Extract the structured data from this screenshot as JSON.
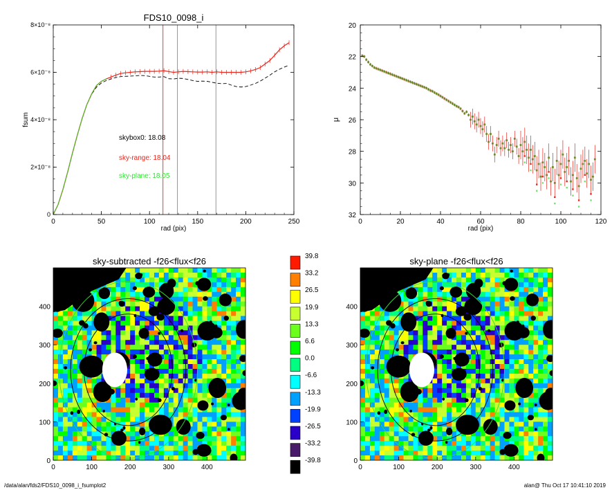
{
  "footer": {
    "path": "/data/alan/fds2/FDS10_0098_i_fsumplot2",
    "user_time": "alan@  Thu Oct 17 10:41:10 2019"
  },
  "colors": {
    "fsum_red": "#e8261c",
    "fsum_green": "#55b52a",
    "dashed": "#000000",
    "sky_range": "#e8261c",
    "sky_plane": "#2ee62e",
    "vline_red": "#e8261c",
    "vline_gray": "#8a8a8a"
  },
  "chart_data": [
    {
      "type": "line",
      "title": "FDS10_0098_i",
      "xlabel": "rad (pix)",
      "ylabel": "fsum",
      "xlim": [
        0,
        250
      ],
      "ylim": [
        0,
        8e-08
      ],
      "x_ticks": [
        "0",
        "50",
        "100",
        "150",
        "200",
        "250"
      ],
      "y_ticks": [
        "0",
        "2×10⁻⁸",
        "4×10⁻⁸",
        "6×10⁻⁸",
        "8×10⁻⁸"
      ],
      "vertical_lines": [
        {
          "x": 114,
          "color": "red"
        },
        {
          "x": 129,
          "color": "gray"
        },
        {
          "x": 169,
          "color": "gray"
        }
      ],
      "annotations": [
        {
          "text": "skybox0: 18.08",
          "color": "black"
        },
        {
          "text": "sky-range: 18.04",
          "color": "red"
        },
        {
          "text": "sky-plane: 18.05",
          "color": "green"
        }
      ],
      "x": [
        0,
        5,
        10,
        15,
        20,
        25,
        30,
        35,
        40,
        45,
        50,
        55,
        60,
        65,
        70,
        75,
        80,
        85,
        90,
        95,
        100,
        105,
        110,
        115,
        120,
        125,
        130,
        135,
        140,
        145,
        150,
        155,
        160,
        165,
        170,
        175,
        180,
        185,
        190,
        195,
        200,
        205,
        210,
        215,
        220,
        225,
        230,
        235,
        240,
        245
      ],
      "series": [
        {
          "values": [
            0,
            4.2e-09,
            1.05e-08,
            1.8e-08,
            2.6e-08,
            3.35e-08,
            4.05e-08,
            4.65e-08,
            5.1e-08,
            5.45e-08,
            5.62e-08,
            5.72e-08,
            5.8e-08,
            5.88e-08,
            5.95e-08,
            5.98e-08,
            6e-08,
            6.02e-08,
            6.03e-08,
            6.04e-08,
            6.04e-08,
            6.04e-08,
            6.05e-08,
            6.07e-08,
            6.03e-08,
            6e-08,
            6.02e-08,
            6.04e-08,
            6.03e-08,
            6.02e-08,
            6.01e-08,
            6.01e-08,
            6.02e-08,
            6e-08,
            6.02e-08,
            6e-08,
            6e-08,
            6e-08,
            6e-08,
            6e-08,
            6.02e-08,
            6.06e-08,
            6.12e-08,
            6.2e-08,
            6.35e-08,
            6.5e-08,
            6.72e-08,
            6.95e-08,
            7.12e-08,
            7.25e-08
          ],
          "error": 1e-09
        },
        {
          "values": [
            0,
            4.2e-09,
            1.05e-08,
            1.8e-08,
            2.6e-08,
            3.35e-08,
            4.05e-08,
            4.65e-08,
            5.1e-08,
            5.45e-08,
            5.62e-08,
            5.72e-08,
            5.8e-08,
            5.88e-08,
            5.95e-08,
            5.98e-08,
            6e-08,
            6.02e-08,
            6.03e-08,
            6.04e-08,
            6.04e-08,
            6.04e-08,
            6.05e-08,
            6.07e-08,
            6.03e-08,
            6e-08,
            6.02e-08,
            6.04e-08,
            6.03e-08,
            6.02e-08,
            6.01e-08,
            6.01e-08,
            6.02e-08,
            6e-08,
            6.02e-08,
            6e-08,
            6e-08,
            6e-08,
            6e-08,
            6e-08,
            6.02e-08,
            6.06e-08,
            6.12e-08,
            6.2e-08,
            6.35e-08,
            6.5e-08,
            6.72e-08,
            6.95e-08,
            7.12e-08,
            7.25e-08
          ]
        },
        {
          "values": [
            0,
            4.2e-09,
            1.05e-08,
            1.8e-08,
            2.6e-08,
            3.35e-08,
            4.05e-08,
            4.65e-08,
            5.08e-08,
            5.38e-08,
            5.55e-08,
            5.65e-08,
            5.72e-08,
            5.78e-08,
            5.82e-08,
            5.83e-08,
            5.84e-08,
            5.85e-08,
            5.87e-08,
            5.86e-08,
            5.83e-08,
            5.8e-08,
            5.8e-08,
            5.82e-08,
            5.73e-08,
            5.72e-08,
            5.75e-08,
            5.74e-08,
            5.7e-08,
            5.65e-08,
            5.62e-08,
            5.63e-08,
            5.62e-08,
            5.58e-08,
            5.54e-08,
            5.52e-08,
            5.53e-08,
            5.46e-08,
            5.4e-08,
            5.38e-08,
            5.4e-08,
            5.46e-08,
            5.53e-08,
            5.63e-08,
            5.75e-08,
            5.88e-08,
            6.02e-08,
            6.13e-08,
            6.22e-08,
            6.3e-08
          ],
          "style": "dashed"
        }
      ]
    },
    {
      "type": "scatter",
      "xlabel": "rad (pix)",
      "ylabel": "μ",
      "xlim": [
        0,
        120
      ],
      "ylim": [
        32,
        20
      ],
      "x_ticks": [
        "0",
        "20",
        "40",
        "60",
        "80",
        "100",
        "120"
      ],
      "y_ticks": [
        "20",
        "22",
        "24",
        "26",
        "28",
        "30",
        "32"
      ],
      "x": [
        1,
        2,
        3,
        4,
        5,
        6,
        7,
        8,
        9,
        10,
        11,
        12,
        13,
        14,
        15,
        16,
        17,
        18,
        19,
        20,
        21,
        22,
        23,
        24,
        25,
        26,
        27,
        28,
        29,
        30,
        31,
        32,
        33,
        34,
        35,
        36,
        37,
        38,
        39,
        40,
        41,
        42,
        43,
        44,
        45,
        46,
        47,
        48,
        49,
        50,
        51,
        52,
        53,
        54,
        55,
        56,
        57,
        58,
        59,
        60,
        61,
        62,
        63,
        64,
        65,
        66,
        67,
        68,
        69,
        70,
        71,
        72,
        73,
        74,
        75,
        76,
        77,
        78,
        79,
        80,
        81,
        82,
        83,
        84,
        85,
        86,
        87,
        88,
        89,
        90,
        91,
        92,
        93,
        94,
        95,
        96,
        97,
        98,
        99,
        100,
        101,
        102,
        103,
        104,
        105,
        106,
        107,
        108,
        109,
        110,
        111,
        112,
        113,
        114,
        115,
        116,
        117
      ],
      "series": [
        {
          "values": [
            21.95,
            22.0,
            22.2,
            22.35,
            22.5,
            22.6,
            22.7,
            22.75,
            22.8,
            22.85,
            22.9,
            22.95,
            23.0,
            23.05,
            23.1,
            23.15,
            23.2,
            23.25,
            23.3,
            23.35,
            23.4,
            23.45,
            23.5,
            23.55,
            23.6,
            23.65,
            23.7,
            23.75,
            23.8,
            23.85,
            23.9,
            23.95,
            24.0,
            24.08,
            24.15,
            24.2,
            24.28,
            24.35,
            24.42,
            24.5,
            24.58,
            24.66,
            24.74,
            24.82,
            24.9,
            24.98,
            25.06,
            25.14,
            25.2,
            25.3,
            25.45,
            25.6,
            25.5,
            25.7,
            26.0,
            25.8,
            26.1,
            26.3,
            26.0,
            26.4,
            26.6,
            26.3,
            26.9,
            27.4,
            26.9,
            27.5,
            28.2,
            27.6,
            27.2,
            27.8,
            27.5,
            27.8,
            27.3,
            27.9,
            27.6,
            28.0,
            27.2,
            27.7,
            28.3,
            27.6,
            28.0,
            27.4,
            27.9,
            28.4,
            27.9,
            28.5,
            28.3,
            29.2,
            28.8,
            29.6,
            28.7,
            29.0,
            29.5,
            28.4,
            29.9,
            29.0,
            30.0,
            28.6,
            29.5,
            28.8,
            28.2,
            29.3,
            29.0,
            28.6,
            29.9,
            29.5,
            28.4,
            29.7,
            30.2,
            29.1,
            28.8,
            28.6,
            29.4,
            28.8,
            29.8,
            29.6,
            28.5
          ],
          "error": 0.3,
          "color": "red"
        }
      ]
    },
    {
      "type": "heatmap",
      "title": "sky-subtracted -f26<flux<f26",
      "xlim": [
        0,
        500
      ],
      "ylim": [
        0,
        500
      ],
      "x_ticks": [
        "0",
        "100",
        "200",
        "300",
        "400"
      ],
      "y_ticks": [
        "0",
        "100",
        "200",
        "300",
        "400"
      ]
    },
    {
      "type": "heatmap",
      "title": "sky-plane -f26<flux<f26",
      "xlim": [
        0,
        500
      ],
      "ylim": [
        0,
        500
      ],
      "x_ticks": [
        "0",
        "100",
        "200",
        "300",
        "400"
      ],
      "y_ticks": [
        "0",
        "100",
        "200",
        "300",
        "400"
      ]
    },
    {
      "type": "table",
      "name": "colorbar",
      "labels": [
        "39.8",
        "33.2",
        "26.5",
        "19.9",
        "13.3",
        "6.6",
        "0.0",
        "-6.6",
        "-13.3",
        "-19.9",
        "-26.5",
        "-33.2",
        "-39.8"
      ],
      "colors": [
        "#ff1a00",
        "#ff8000",
        "#ffff00",
        "#c8ff30",
        "#6cff1e",
        "#00ff00",
        "#00ff80",
        "#00ffff",
        "#00a0ff",
        "#0040ff",
        "#2a00c8",
        "#4a1a6a",
        "#000000"
      ]
    }
  ]
}
